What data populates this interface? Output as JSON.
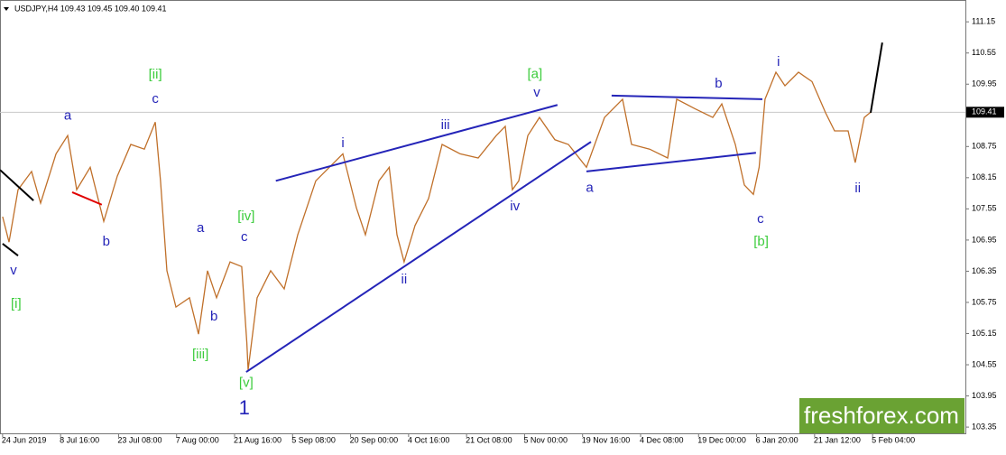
{
  "chart_data": {
    "type": "line",
    "title": "USDJPY,H4  109.43 109.45 109.40 109.41",
    "watermark": "freshforex.com",
    "last_price": 109.41,
    "x": [
      0,
      10,
      24,
      45,
      59,
      83,
      101,
      115,
      136,
      157,
      178,
      199,
      220,
      237,
      245,
      255,
      269,
      290,
      304,
      318,
      332,
      353,
      371,
      379,
      381,
      395,
      416,
      437,
      458,
      486,
      507,
      528,
      549,
      563,
      584,
      600,
      612,
      623,
      640,
      661,
      682,
      710,
      738,
      766,
      780,
      791,
      801,
      815,
      833,
      857,
      878,
      906,
      934,
      962,
      976,
      1004,
      1032,
      1046,
      1074,
      1102,
      1116,
      1137,
      1151,
      1165,
      1174,
      1183,
      1200,
      1214,
      1235,
      1256,
      1277,
      1291,
      1312,
      1323,
      1337,
      1347
    ],
    "series": [
      {
        "name": "USDJPY",
        "color": "#c0702a",
        "values": [
          107.4,
          106.91,
          107.92,
          108.27,
          107.66,
          108.61,
          108.96,
          107.92,
          108.35,
          107.31,
          108.18,
          108.79,
          108.7,
          109.22,
          108.09,
          106.36,
          105.66,
          105.84,
          105.14,
          106.36,
          105.84,
          106.53,
          106.44,
          104.97,
          104.45,
          105.84,
          106.36,
          106.01,
          107.05,
          108.09,
          108.35,
          108.61,
          107.57,
          107.05,
          108.09,
          108.35,
          107.05,
          106.53,
          107.23,
          107.75,
          108.79,
          108.61,
          108.53,
          108.96,
          109.14,
          107.92,
          108.09,
          108.96,
          109.31,
          108.88,
          108.79,
          108.35,
          109.31,
          109.66,
          108.79,
          108.7,
          108.53,
          109.66,
          109.48,
          109.31,
          109.57,
          108.79,
          108.01,
          107.83,
          108.35,
          109.66,
          110.18,
          109.92,
          110.18,
          110.0,
          109.4,
          109.05,
          109.05,
          108.44,
          109.31,
          109.41
        ]
      }
    ],
    "xlim": [
      -4,
      1494
    ],
    "ylim": [
      103.23,
      111.57
    ],
    "yticks": [
      111.15,
      110.55,
      109.95,
      108.75,
      108.15,
      107.55,
      106.95,
      106.35,
      105.75,
      105.15,
      104.55,
      103.95,
      103.35
    ],
    "xticks": [
      {
        "value": 0,
        "label": "24 Jun 2019"
      },
      {
        "value": 90,
        "label": "8 Jul 16:00"
      },
      {
        "value": 180,
        "label": "23 Jul 08:00"
      },
      {
        "value": 270,
        "label": "7 Aug 00:00"
      },
      {
        "value": 360,
        "label": "21 Aug 16:00"
      },
      {
        "value": 450,
        "label": "5 Sep 08:00"
      },
      {
        "value": 540,
        "label": "20 Sep 00:00"
      },
      {
        "value": 630,
        "label": "4 Oct 16:00"
      },
      {
        "value": 720,
        "label": "21 Oct 08:00"
      },
      {
        "value": 810,
        "label": "5 Nov 00:00"
      },
      {
        "value": 900,
        "label": "19 Nov 16:00"
      },
      {
        "value": 990,
        "label": "4 Dec 08:00"
      },
      {
        "value": 1080,
        "label": "19 Dec 00:00"
      },
      {
        "value": 1170,
        "label": "6 Jan 20:00"
      },
      {
        "value": 1260,
        "label": "21 Jan 12:00"
      },
      {
        "value": 1350,
        "label": "5 Feb 04:00"
      }
    ],
    "drawings": [
      {
        "color": "#2424b8",
        "x": [
          378,
          913
        ],
        "y": [
          104.41,
          108.84
        ]
      },
      {
        "color": "#2424b8",
        "x": [
          424,
          861
        ],
        "y": [
          108.09,
          109.55
        ]
      },
      {
        "color": "#2424b8",
        "x": [
          906,
          1169
        ],
        "y": [
          108.27,
          108.63
        ]
      },
      {
        "color": "#2424b8",
        "x": [
          945,
          1179
        ],
        "y": [
          109.73,
          109.66
        ]
      },
      {
        "color": "#e00000",
        "x": [
          108,
          154
        ],
        "y": [
          107.87,
          107.63
        ]
      },
      {
        "color": "#000000",
        "x": [
          -4,
          48
        ],
        "y": [
          108.3,
          107.71
        ]
      },
      {
        "color": "#000000",
        "x": [
          0,
          24
        ],
        "y": [
          106.88,
          106.65
        ]
      },
      {
        "color": "#000000",
        "x": [
          1347,
          1365
        ],
        "y": [
          109.4,
          110.75
        ]
      }
    ],
    "annotations": [
      {
        "text": "v",
        "x": 17,
        "y": 106.36,
        "color": "#2424b8"
      },
      {
        "text": "[i]",
        "x": 21,
        "y": 105.71,
        "color": "#3ccc3c"
      },
      {
        "text": "a",
        "x": 101,
        "y": 109.34,
        "color": "#2424b8"
      },
      {
        "text": "b",
        "x": 161,
        "y": 106.91,
        "color": "#2424b8"
      },
      {
        "text": "[ii]",
        "x": 237,
        "y": 110.13,
        "color": "#3ccc3c"
      },
      {
        "text": "c",
        "x": 237,
        "y": 109.66,
        "color": "#2424b8"
      },
      {
        "text": "a",
        "x": 307,
        "y": 107.17,
        "color": "#2424b8"
      },
      {
        "text": "b",
        "x": 328,
        "y": 105.47,
        "color": "#2424b8"
      },
      {
        "text": "[iii]",
        "x": 307,
        "y": 104.74,
        "color": "#3ccc3c"
      },
      {
        "text": "[iv]",
        "x": 378,
        "y": 107.4,
        "color": "#3ccc3c"
      },
      {
        "text": "c",
        "x": 375,
        "y": 107.0,
        "color": "#2424b8"
      },
      {
        "text": "[v]",
        "x": 378,
        "y": 104.19,
        "color": "#3ccc3c"
      },
      {
        "text": "1",
        "x": 375,
        "y": 103.7,
        "color": "#2424b8",
        "large": true
      },
      {
        "text": "i",
        "x": 528,
        "y": 108.81,
        "color": "#2424b8"
      },
      {
        "text": "iii",
        "x": 687,
        "y": 109.15,
        "color": "#2424b8"
      },
      {
        "text": "ii",
        "x": 623,
        "y": 106.18,
        "color": "#2424b8"
      },
      {
        "text": "iv",
        "x": 795,
        "y": 107.59,
        "color": "#2424b8"
      },
      {
        "text": "[a]",
        "x": 826,
        "y": 110.14,
        "color": "#3ccc3c"
      },
      {
        "text": "v",
        "x": 829,
        "y": 109.78,
        "color": "#2424b8"
      },
      {
        "text": "a",
        "x": 911,
        "y": 107.95,
        "color": "#2424b8"
      },
      {
        "text": "b",
        "x": 1111,
        "y": 109.95,
        "color": "#2424b8"
      },
      {
        "text": "c",
        "x": 1176,
        "y": 107.35,
        "color": "#2424b8"
      },
      {
        "text": "[b]",
        "x": 1177,
        "y": 106.91,
        "color": "#3ccc3c"
      },
      {
        "text": "i",
        "x": 1204,
        "y": 110.37,
        "color": "#2424b8"
      },
      {
        "text": "ii",
        "x": 1327,
        "y": 107.94,
        "color": "#2424b8"
      }
    ]
  }
}
